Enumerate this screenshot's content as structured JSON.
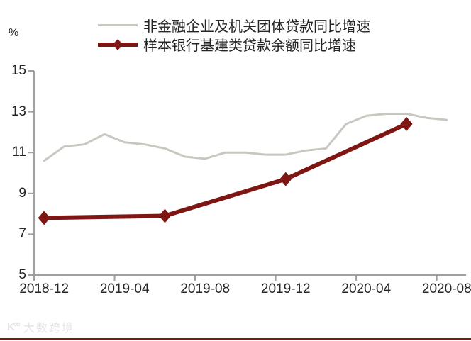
{
  "watermark": {
    "icon_glyph": "K°°",
    "text": "大数跨境"
  },
  "bottom_rule_color": "#7e1614",
  "chart_data": {
    "type": "line",
    "title": "",
    "xlabel": "",
    "ylabel": "%",
    "ylim": [
      5,
      15
    ],
    "yticks": [
      15,
      13,
      11,
      9,
      7,
      5
    ],
    "grid": false,
    "legend_position": "top",
    "axis_color": "#a0a0a0",
    "x_categories": [
      "2018-12",
      "2019-01",
      "2019-02",
      "2019-03",
      "2019-04",
      "2019-05",
      "2019-06",
      "2019-07",
      "2019-08",
      "2019-09",
      "2019-10",
      "2019-11",
      "2019-12",
      "2020-01",
      "2020-02",
      "2020-03",
      "2020-04",
      "2020-05",
      "2020-06",
      "2020-07",
      "2020-08"
    ],
    "xtick_labels": [
      "2018-12",
      "2019-04",
      "2019-08",
      "2019-12",
      "2020-04",
      "2020-08"
    ],
    "series": [
      {
        "name": "非金融企业及机关团体贷款同比增速",
        "color": "#c9c8c0",
        "marker": "none",
        "line_width": 3,
        "x": [
          "2018-12",
          "2019-01",
          "2019-02",
          "2019-03",
          "2019-04",
          "2019-05",
          "2019-06",
          "2019-07",
          "2019-08",
          "2019-09",
          "2019-10",
          "2019-11",
          "2019-12",
          "2020-01",
          "2020-02",
          "2020-03",
          "2020-04",
          "2020-05",
          "2020-06",
          "2020-07",
          "2020-08"
        ],
        "values": [
          10.6,
          11.3,
          11.4,
          11.9,
          11.5,
          11.4,
          11.2,
          10.8,
          10.7,
          11.0,
          11.0,
          10.9,
          10.9,
          11.1,
          11.2,
          12.4,
          12.8,
          12.9,
          12.9,
          12.7,
          12.6
        ]
      },
      {
        "name": "样本银行基建类贷款余额同比增速",
        "color": "#7e1614",
        "marker": "diamond",
        "line_width": 6,
        "x": [
          "2018-12",
          "2019-06",
          "2019-12",
          "2020-06"
        ],
        "values": [
          7.8,
          7.9,
          9.7,
          12.4
        ]
      }
    ]
  }
}
